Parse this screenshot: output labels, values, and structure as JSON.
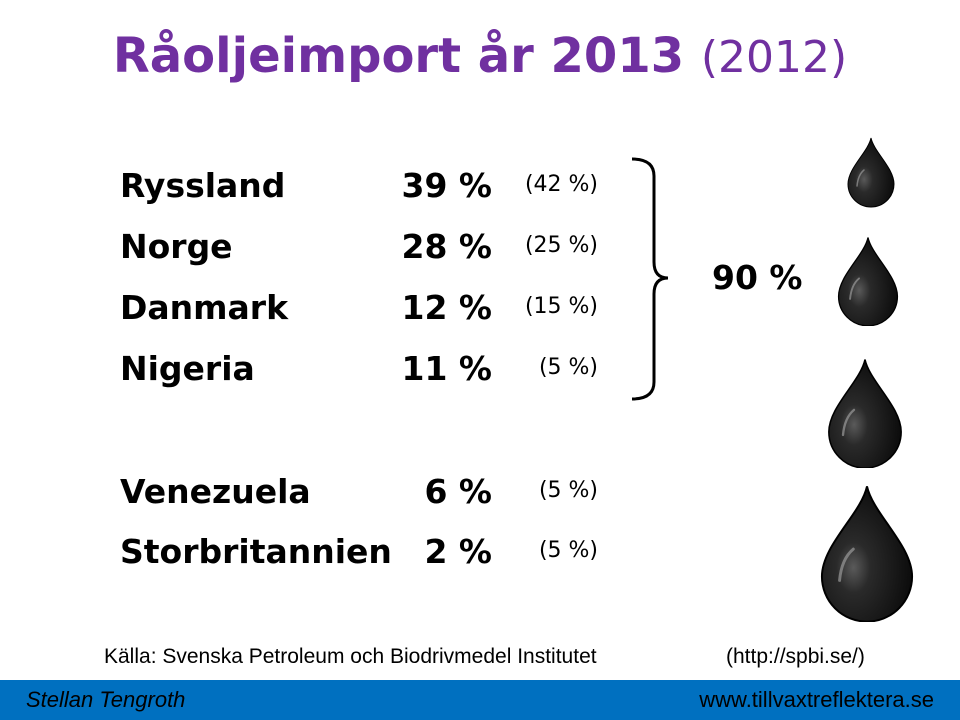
{
  "title": {
    "main": "Råoljeimport år 2013",
    "sub": "(2012)"
  },
  "rows": [
    {
      "country": "Ryssland",
      "pct_2013": "39 %",
      "pct_2012": "(42 %)"
    },
    {
      "country": "Norge",
      "pct_2013": "28 %",
      "pct_2012": "(25 %)"
    },
    {
      "country": "Danmark",
      "pct_2013": "12 %",
      "pct_2012": "(15 %)"
    },
    {
      "country": "Nigeria",
      "pct_2013": "11 %",
      "pct_2012": "(5 %)"
    },
    {
      "country": "Venezuela",
      "pct_2013": "6 %",
      "pct_2012": "(5 %)"
    },
    {
      "country": "Storbritannien",
      "pct_2013": "2 %",
      "pct_2012": "(5 %)"
    }
  ],
  "bracket_total": "90 %",
  "source": "Källa: Svenska Petroleum och Biodrivmedel Institutet",
  "source_url": "(http://spbi.se/)",
  "footer": {
    "author": "Stellan Tengroth",
    "website": "www.tillvaxtreflektera.se"
  },
  "colors": {
    "title": "#7030a0",
    "footer_bar": "#0070c0",
    "oil_drop": "#111111"
  },
  "icons": [
    "oil-drop-icon",
    "curly-brace-icon"
  ]
}
